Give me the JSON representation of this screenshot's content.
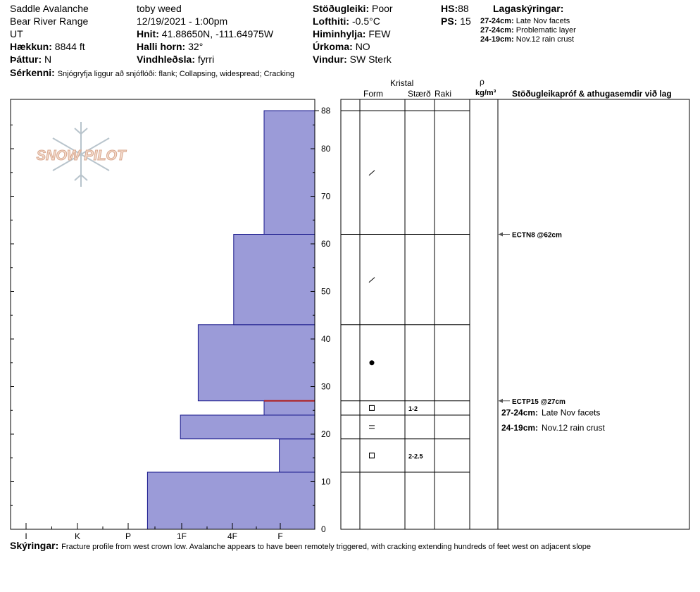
{
  "header": {
    "location": "Saddle Avalanche",
    "range": "Bear River Range",
    "state": "UT",
    "elevation_label": "Hækkun:",
    "elevation_value": "8844 ft",
    "aspect_label": "Þáttur:",
    "aspect_value": "N",
    "observer": "toby weed",
    "datetime": "12/19/2021 - 1:00pm",
    "coords_label": "Hnit:",
    "coords_value": "41.88650N, -111.64975W",
    "slope_label": "Halli horn:",
    "slope_value": "32°",
    "wind_loading_label": "Vindhleðsla:",
    "wind_loading_value": "fyrri",
    "stability_label": "Stöðugleiki:",
    "stability_value": "Poor",
    "air_temp_label": "Lofthiti:",
    "air_temp_value": "-0.5°C",
    "sky_label": "Himinhylja:",
    "sky_value": "FEW",
    "precip_label": "Úrkoma:",
    "precip_value": "NO",
    "wind_label": "Vindur:",
    "wind_value": "SW Sterk",
    "hs_label": "HS:",
    "hs_value": "88",
    "ps_label": "PS:",
    "ps_value": "15",
    "layers_title": "Lagaskýringar:",
    "layer_notes": [
      {
        "range": "27-24cm:",
        "text": "Late Nov facets"
      },
      {
        "range": "27-24cm:",
        "text": "Problematic layer"
      },
      {
        "range": "24-19cm:",
        "text": "Nov.12 rain crust"
      }
    ],
    "features_label": "Sérkenni:",
    "features_value": "Snjógryfja liggur að snjóflóði: flank; Collapsing, widespread; Cracking"
  },
  "logo": {
    "text": "SNOW PILOT"
  },
  "columns": {
    "crystal": "Kristal",
    "form": "Form",
    "size": "Stærð",
    "moisture": "Raki",
    "rho": "ρ",
    "density_unit": "kg/m³",
    "stability_tests": "Stöðugleikapróf & athugasemdir við lag"
  },
  "footer": {
    "label": "Skýringar:",
    "text": "Fracture profile from west crown low. Avalanche appears to have been remotely triggered, with cracking extending hundreds of feet west on adjacent slope"
  },
  "chart_data": {
    "type": "bar",
    "orientation": "horizontal",
    "y_ticks": [
      0,
      10,
      20,
      30,
      40,
      50,
      60,
      70,
      80,
      88
    ],
    "ylim": [
      0,
      88
    ],
    "x_categories": [
      "I",
      "K",
      "P",
      "1F",
      "4F",
      "F"
    ],
    "hardness_profile": [
      {
        "bottom": 0,
        "top": 12,
        "hardness": "P-"
      },
      {
        "bottom": 12,
        "top": 19,
        "hardness": "F+"
      },
      {
        "bottom": 19,
        "top": 24,
        "hardness": "P+"
      },
      {
        "bottom": 24,
        "top": 27,
        "hardness": "4F-"
      },
      {
        "bottom": 27,
        "top": 43,
        "hardness": "1F-"
      },
      {
        "bottom": 43,
        "top": 62,
        "hardness": "1F+"
      },
      {
        "bottom": 62,
        "top": 88,
        "hardness": "4F-"
      }
    ],
    "hardness_score": [
      2.7,
      5.3,
      3.35,
      5.0,
      3.7,
      4.4,
      5.0
    ],
    "problem_layer_height": 27,
    "fill_color": "#9b9bd8",
    "edge_color": "#1a1a8c",
    "layer_boundaries": [
      88,
      62,
      43,
      27,
      24,
      19,
      12
    ],
    "crystal_symbols": [
      {
        "height": 75,
        "symbol": "⁄"
      },
      {
        "height": 52.5,
        "symbol": "⁄"
      },
      {
        "height": 35,
        "symbol": "●"
      },
      {
        "height": 25.5,
        "symbol": "□",
        "size": "1-2"
      },
      {
        "height": 21.5,
        "symbol": "="
      },
      {
        "height": 15.5,
        "symbol": "□",
        "size": "2-2.5"
      }
    ],
    "stability_tests": [
      {
        "height": 62,
        "label": "ECTN8 @62cm"
      },
      {
        "height": 27,
        "label": "ECTP15 @27cm"
      }
    ],
    "layer_comments": [
      {
        "height": 24.5,
        "range": "27-24cm:",
        "text": "Late Nov facets"
      },
      {
        "height": 21.3,
        "range": "24-19cm:",
        "text": "Nov.12 rain crust"
      }
    ]
  }
}
